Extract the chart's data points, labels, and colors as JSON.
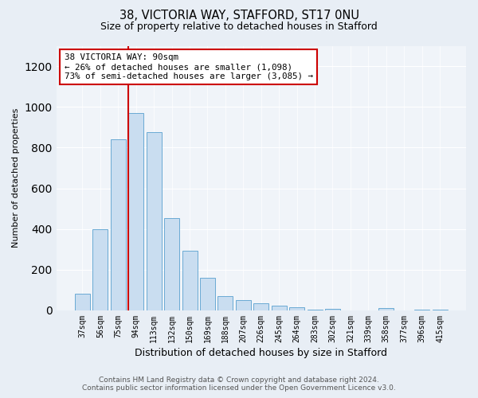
{
  "title1": "38, VICTORIA WAY, STAFFORD, ST17 0NU",
  "title2": "Size of property relative to detached houses in Stafford",
  "xlabel": "Distribution of detached houses by size in Stafford",
  "ylabel": "Number of detached properties",
  "categories": [
    "37sqm",
    "56sqm",
    "75sqm",
    "94sqm",
    "113sqm",
    "132sqm",
    "150sqm",
    "169sqm",
    "188sqm",
    "207sqm",
    "226sqm",
    "245sqm",
    "264sqm",
    "283sqm",
    "302sqm",
    "321sqm",
    "339sqm",
    "358sqm",
    "377sqm",
    "396sqm",
    "415sqm"
  ],
  "values": [
    80,
    400,
    840,
    970,
    875,
    455,
    295,
    160,
    70,
    52,
    35,
    22,
    15,
    3,
    8,
    0,
    0,
    10,
    0,
    5,
    5
  ],
  "bar_color": "#c9ddf0",
  "bar_edge_color": "#6aaad4",
  "vline_color": "#cc0000",
  "annotation_text": "38 VICTORIA WAY: 90sqm\n← 26% of detached houses are smaller (1,098)\n73% of semi-detached houses are larger (3,085) →",
  "annotation_box_color": "#ffffff",
  "annotation_box_edge": "#cc0000",
  "ylim": [
    0,
    1300
  ],
  "yticks": [
    0,
    200,
    400,
    600,
    800,
    1000,
    1200
  ],
  "footer1": "Contains HM Land Registry data © Crown copyright and database right 2024.",
  "footer2": "Contains public sector information licensed under the Open Government Licence v3.0.",
  "bg_color": "#e8eef5",
  "plot_bg_color": "#f0f4f9",
  "grid_color": "#ffffff",
  "title1_fontsize": 10.5,
  "title2_fontsize": 9,
  "ylabel_fontsize": 8,
  "xlabel_fontsize": 9,
  "tick_fontsize": 7,
  "footer_fontsize": 6.5
}
